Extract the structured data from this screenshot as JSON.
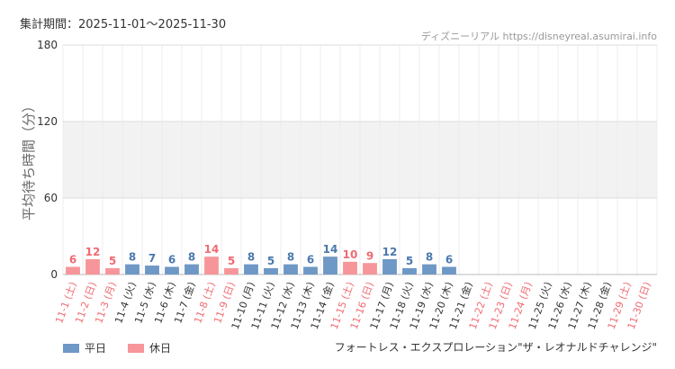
{
  "header": {
    "period": "集計期間：2025-11-01～2025-11-30",
    "source": "ディズニーリアル https://disneyreal.asumirai.info"
  },
  "footer": {
    "attraction": "フォートレス・エクスプロレーション\"ザ・レオナルドチャレンジ\""
  },
  "legend": {
    "weekday": "平日",
    "holiday": "休日"
  },
  "colors": {
    "weekday": "#6e98c5",
    "holiday": "#f7969a",
    "weekday_label": "#4a78ad",
    "holiday_label": "#f06a72"
  },
  "chart_data": {
    "type": "bar",
    "ylabel": "平均待ち時間（分）",
    "ylim": [
      0,
      180
    ],
    "yticks": [
      0,
      60,
      120,
      180
    ],
    "grid": true,
    "legend_position": "bottom-left",
    "categories": [
      "11-1 (土)",
      "11-2 (日)",
      "11-3 (月)",
      "11-4 (火)",
      "11-5 (水)",
      "11-6 (木)",
      "11-7 (金)",
      "11-8 (土)",
      "11-9 (日)",
      "11-10 (月)",
      "11-11 (火)",
      "11-12 (水)",
      "11-13 (木)",
      "11-14 (金)",
      "11-15 (土)",
      "11-16 (日)",
      "11-17 (月)",
      "11-18 (火)",
      "11-19 (水)",
      "11-20 (木)",
      "11-21 (金)",
      "11-22 (土)",
      "11-23 (日)",
      "11-24 (月)",
      "11-25 (火)",
      "11-26 (水)",
      "11-27 (木)",
      "11-28 (金)",
      "11-29 (土)",
      "11-30 (日)"
    ],
    "day_type": [
      "holiday",
      "holiday",
      "holiday",
      "weekday",
      "weekday",
      "weekday",
      "weekday",
      "holiday",
      "holiday",
      "weekday",
      "weekday",
      "weekday",
      "weekday",
      "weekday",
      "holiday",
      "holiday",
      "weekday",
      "weekday",
      "weekday",
      "weekday",
      "weekday",
      "holiday",
      "holiday",
      "holiday",
      "weekday",
      "weekday",
      "weekday",
      "weekday",
      "holiday",
      "holiday"
    ],
    "values": [
      6,
      12,
      5,
      8,
      7,
      6,
      8,
      14,
      5,
      8,
      5,
      8,
      6,
      14,
      10,
      9,
      12,
      5,
      8,
      6,
      null,
      null,
      null,
      null,
      null,
      null,
      null,
      null,
      null,
      null
    ]
  }
}
